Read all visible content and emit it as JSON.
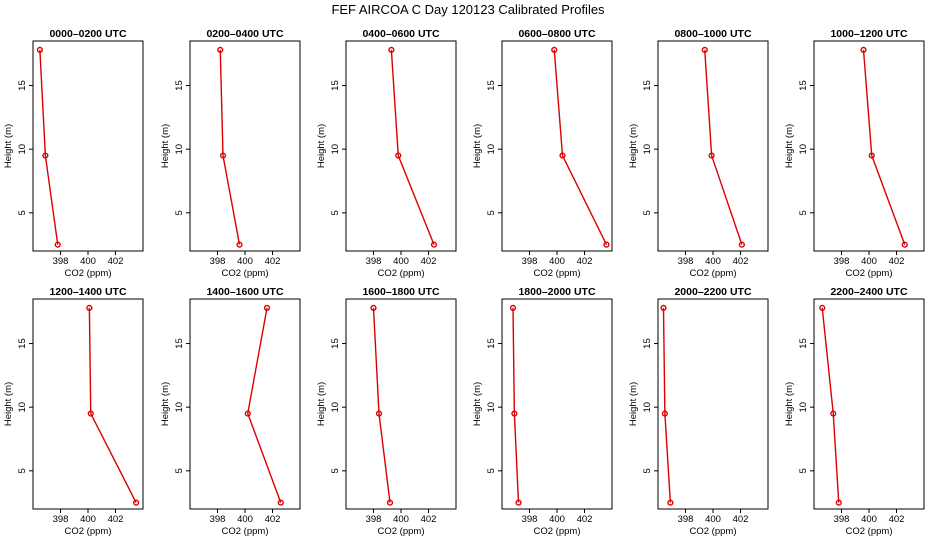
{
  "title": "FEF AIRCOA C  Day 120123  Calibrated Profiles",
  "chart_data": {
    "type": "line",
    "xlabel": "CO2 (ppm)",
    "ylabel": "Height (m)",
    "xlim": [
      396,
      404
    ],
    "ylim": [
      2,
      18.5
    ],
    "xticks": [
      "398",
      "400",
      "402"
    ],
    "yticks": [
      "5",
      "10",
      "15"
    ],
    "heights": [
      2.5,
      9.5,
      17.8
    ],
    "panels": [
      {
        "title": "0000–0200 UTC",
        "co2": [
          397.8,
          396.9,
          396.5
        ]
      },
      {
        "title": "0200–0400 UTC",
        "co2": [
          399.6,
          398.4,
          398.2
        ]
      },
      {
        "title": "0400–0600 UTC",
        "co2": [
          402.4,
          399.8,
          399.3
        ]
      },
      {
        "title": "0600–0800 UTC",
        "co2": [
          403.6,
          400.4,
          399.8
        ]
      },
      {
        "title": "0800–1000 UTC",
        "co2": [
          402.1,
          399.9,
          399.4
        ]
      },
      {
        "title": "1000–1200 UTC",
        "co2": [
          402.6,
          400.2,
          399.6
        ]
      },
      {
        "title": "1200–1400 UTC",
        "co2": [
          403.5,
          400.2,
          400.1
        ]
      },
      {
        "title": "1400–1600 UTC",
        "co2": [
          402.6,
          400.2,
          401.6
        ]
      },
      {
        "title": "1600–1800 UTC",
        "co2": [
          399.2,
          398.4,
          398.0
        ]
      },
      {
        "title": "1800–2000 UTC",
        "co2": [
          397.2,
          396.9,
          396.8
        ]
      },
      {
        "title": "2000–2200 UTC",
        "co2": [
          396.9,
          396.5,
          396.4
        ]
      },
      {
        "title": "2200–2400 UTC",
        "co2": [
          397.8,
          397.4,
          396.6
        ]
      }
    ]
  }
}
